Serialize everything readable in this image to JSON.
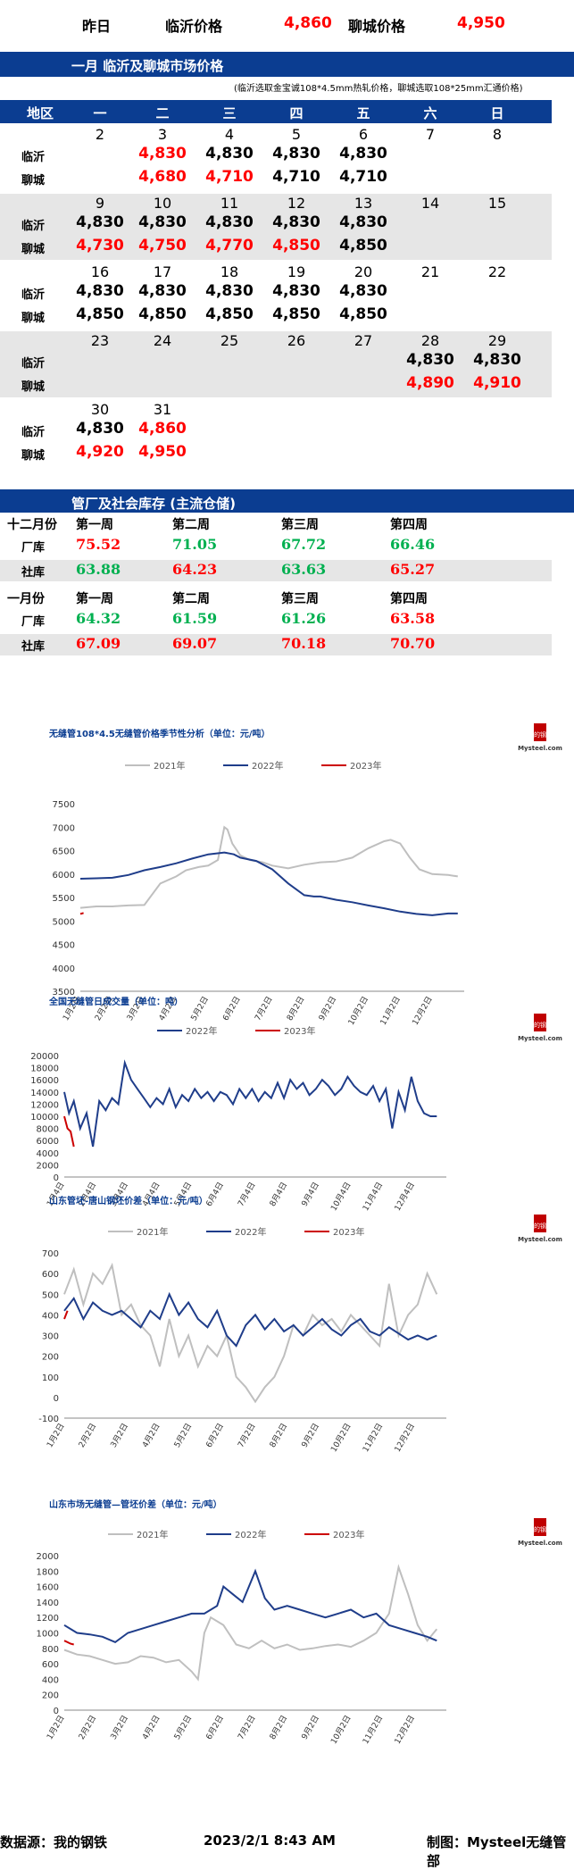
{
  "top": {
    "yesterday_label": "昨日",
    "linyi_label": "临沂价格",
    "linyi_value": "4,860",
    "liaocheng_label": "聊城价格",
    "liaocheng_value": "4,950"
  },
  "month_section": {
    "title": "一月  临沂及聊城市场价格",
    "note": "(临沂选取金宝诚108*4.5mm热轧价格，聊城选取108*25mm汇通价格)",
    "header": [
      "地区",
      "一",
      "二",
      "三",
      "四",
      "五",
      "六",
      "日"
    ],
    "row_labels": {
      "linyi": "临沂",
      "liaocheng": "聊城"
    },
    "weeks": [
      {
        "days": [
          "2",
          "3",
          "4",
          "5",
          "6",
          "7",
          "8"
        ],
        "linyi": [
          "",
          "4,830",
          "4,830",
          "4,830",
          "4,830",
          "",
          ""
        ],
        "liaocheng": [
          "",
          "4,680",
          "4,710",
          "4,710",
          "4,710",
          "",
          ""
        ],
        "linyi_red": [
          1
        ],
        "liaocheng_red": [
          1,
          2
        ]
      },
      {
        "days": [
          "9",
          "10",
          "11",
          "12",
          "13",
          "14",
          "15"
        ],
        "linyi": [
          "4,830",
          "4,830",
          "4,830",
          "4,830",
          "4,830",
          "",
          ""
        ],
        "liaocheng": [
          "4,730",
          "4,750",
          "4,770",
          "4,850",
          "4,850",
          "",
          ""
        ],
        "linyi_red": [],
        "liaocheng_red": [
          0,
          1,
          2,
          3
        ]
      },
      {
        "days": [
          "16",
          "17",
          "18",
          "19",
          "20",
          "21",
          "22"
        ],
        "linyi": [
          "4,830",
          "4,830",
          "4,830",
          "4,830",
          "4,830",
          "",
          ""
        ],
        "liaocheng": [
          "4,850",
          "4,850",
          "4,850",
          "4,850",
          "4,850",
          "",
          ""
        ],
        "linyi_red": [],
        "liaocheng_red": []
      },
      {
        "days": [
          "23",
          "24",
          "25",
          "26",
          "27",
          "28",
          "29"
        ],
        "linyi": [
          "",
          "",
          "",
          "",
          "",
          "4,830",
          "4,830"
        ],
        "liaocheng": [
          "",
          "",
          "",
          "",
          "",
          "4,890",
          "4,910"
        ],
        "linyi_red": [],
        "liaocheng_red": [
          5,
          6
        ]
      },
      {
        "days": [
          "30",
          "31",
          "",
          "",
          "",
          "",
          ""
        ],
        "linyi": [
          "4,830",
          "4,860",
          "",
          "",
          "",
          "",
          ""
        ],
        "liaocheng": [
          "4,920",
          "4,950",
          "",
          "",
          "",
          "",
          ""
        ],
        "linyi_red": [
          1
        ],
        "liaocheng_red": [
          0,
          1
        ]
      }
    ]
  },
  "inventory": {
    "title": "管厂及社会库存 (主流仓储)",
    "blocks": [
      {
        "month": "十二月份",
        "weeks": [
          "第一周",
          "第二周",
          "第三周",
          "第四周"
        ],
        "rows": [
          {
            "label": "厂库",
            "values": [
              "75.52",
              "71.05",
              "67.72",
              "66.46"
            ],
            "colors": [
              "#ff0000",
              "#00b050",
              "#00b050",
              "#00b050"
            ]
          },
          {
            "label": "社库",
            "values": [
              "63.88",
              "64.23",
              "63.63",
              "65.27"
            ],
            "colors": [
              "#00b050",
              "#ff0000",
              "#00b050",
              "#ff0000"
            ]
          }
        ]
      },
      {
        "month": "一月份",
        "weeks": [
          "第一周",
          "第二周",
          "第三周",
          "第四周"
        ],
        "rows": [
          {
            "label": "厂库",
            "values": [
              "64.32",
              "61.59",
              "61.26",
              "63.58"
            ],
            "colors": [
              "#00b050",
              "#00b050",
              "#00b050",
              "#ff0000"
            ]
          },
          {
            "label": "社库",
            "values": [
              "67.09",
              "69.07",
              "70.18",
              "70.70"
            ],
            "colors": [
              "#ff0000",
              "#ff0000",
              "#ff0000",
              "#ff0000"
            ]
          }
        ]
      }
    ]
  },
  "logo_text": {
    "cn": "我的钢铁",
    "en": "Mysteel.com"
  },
  "chart_data": [
    {
      "type": "line",
      "title": "无缝管108*4.5无缝管价格季节性分析（单位：元/吨）",
      "legend": [
        "2021年",
        "2022年",
        "2023年"
      ],
      "legend_position": "top",
      "ylim": [
        3500,
        7500
      ],
      "yticks": [
        3500,
        4000,
        4500,
        5000,
        5500,
        6000,
        6500,
        7000,
        7500
      ],
      "xticks": [
        "1月2日",
        "2月2日",
        "3月2日",
        "4月2日",
        "5月2日",
        "6月2日",
        "7月2日",
        "8月2日",
        "9月2日",
        "10月2日",
        "11月2日",
        "12月2日"
      ],
      "series": [
        {
          "name": "2021年",
          "color": "#bfbfbf",
          "x": [
            0,
            0.5,
            1,
            1.5,
            2,
            2.5,
            3,
            3.3,
            3.7,
            4,
            4.3,
            4.5,
            4.6,
            4.75,
            5,
            5.3,
            5.7,
            6,
            6.5,
            7,
            7.5,
            8,
            8.5,
            9,
            9.5,
            9.7,
            10,
            10.3,
            10.6,
            11,
            11.5,
            11.8
          ],
          "y": [
            5280,
            5310,
            5310,
            5330,
            5340,
            5800,
            5950,
            6080,
            6150,
            6180,
            6300,
            7000,
            6950,
            6650,
            6400,
            6300,
            6250,
            6180,
            6120,
            6200,
            6250,
            6270,
            6350,
            6550,
            6700,
            6730,
            6650,
            6350,
            6100,
            6000,
            5980,
            5950
          ]
        },
        {
          "name": "2022年",
          "color": "#1f3d8a",
          "x": [
            0,
            0.5,
            1,
            1.5,
            2,
            2.5,
            3,
            3.5,
            4,
            4.5,
            4.8,
            5,
            5.5,
            6,
            6.5,
            7,
            7.3,
            7.5,
            8,
            8.5,
            9,
            9.5,
            10,
            10.5,
            11,
            11.5,
            11.8
          ],
          "y": [
            5900,
            5910,
            5920,
            5980,
            6080,
            6150,
            6230,
            6330,
            6420,
            6460,
            6420,
            6350,
            6280,
            6100,
            5800,
            5550,
            5520,
            5520,
            5450,
            5400,
            5330,
            5270,
            5200,
            5150,
            5120,
            5160,
            5160
          ]
        },
        {
          "name": "2023年",
          "color": "#cc0000",
          "x": [
            0,
            0.05,
            0.1
          ],
          "y": [
            5150,
            5160,
            5170
          ]
        }
      ]
    },
    {
      "type": "line",
      "title": "全国无缝管日成交量（单位：吨）",
      "legend": [
        "2022年",
        "2023年"
      ],
      "legend_position": "top",
      "ylim": [
        0,
        20000
      ],
      "yticks": [
        0,
        2000,
        4000,
        6000,
        8000,
        10000,
        12000,
        14000,
        16000,
        18000,
        20000
      ],
      "xticks": [
        "1月4日",
        "2月4日",
        "3月4日",
        "4月4日",
        "5月4日",
        "6月4日",
        "7月4日",
        "8月4日",
        "9月4日",
        "10月4日",
        "11月4日",
        "12月4日"
      ],
      "series": [
        {
          "name": "2022年",
          "color": "#1f3d8a",
          "x": [
            0,
            0.15,
            0.3,
            0.5,
            0.7,
            0.9,
            1.1,
            1.3,
            1.5,
            1.7,
            1.9,
            2.1,
            2.3,
            2.5,
            2.7,
            2.9,
            3.1,
            3.3,
            3.5,
            3.7,
            3.9,
            4.1,
            4.3,
            4.5,
            4.7,
            4.9,
            5.1,
            5.3,
            5.5,
            5.7,
            5.9,
            6.1,
            6.3,
            6.5,
            6.7,
            6.9,
            7.1,
            7.3,
            7.5,
            7.7,
            7.9,
            8.1,
            8.3,
            8.5,
            8.7,
            8.9,
            9.1,
            9.3,
            9.5,
            9.7,
            9.9,
            10.1,
            10.3,
            10.5,
            10.7,
            10.9,
            11.1,
            11.3,
            11.5,
            11.7
          ],
          "y": [
            14000,
            10500,
            12500,
            8000,
            10500,
            5000,
            12500,
            11000,
            13000,
            12000,
            18800,
            16000,
            14500,
            13000,
            11500,
            13000,
            12000,
            14500,
            11500,
            13500,
            12500,
            14500,
            13000,
            14000,
            12500,
            14000,
            13500,
            12000,
            14500,
            13000,
            14500,
            12500,
            14000,
            13000,
            15500,
            13000,
            16000,
            14500,
            15500,
            13500,
            14500,
            16000,
            15000,
            13500,
            14500,
            16500,
            15000,
            14000,
            13500,
            15000,
            12500,
            14500,
            8000,
            14000,
            11000,
            16500,
            12500,
            10500,
            10000,
            10000
          ]
        },
        {
          "name": "2023年",
          "color": "#cc0000",
          "x": [
            0,
            0.1,
            0.2,
            0.3
          ],
          "y": [
            10000,
            8000,
            7500,
            5000
          ]
        }
      ]
    },
    {
      "type": "line",
      "title": "山东管坯-唐山钢坯价差（单位：元/吨）",
      "legend": [
        "2021年",
        "2022年",
        "2023年"
      ],
      "legend_position": "top",
      "ylim": [
        -100,
        700
      ],
      "yticks": [
        -100,
        0,
        100,
        200,
        300,
        400,
        500,
        600,
        700
      ],
      "xticks": [
        "1月2日",
        "2月2日",
        "3月2日",
        "4月2日",
        "5月2日",
        "6月2日",
        "7月2日",
        "8月2日",
        "9月2日",
        "10月2日",
        "11月2日",
        "12月2日"
      ],
      "series": [
        {
          "name": "2021年",
          "color": "#bfbfbf",
          "x": [
            0,
            0.3,
            0.6,
            0.9,
            1.2,
            1.5,
            1.8,
            2.1,
            2.4,
            2.7,
            3,
            3.3,
            3.6,
            3.9,
            4.2,
            4.5,
            4.8,
            5.1,
            5.4,
            5.7,
            6,
            6.3,
            6.6,
            6.9,
            7.2,
            7.5,
            7.8,
            8.1,
            8.4,
            8.7,
            9,
            9.3,
            9.6,
            9.9,
            10.2,
            10.5,
            10.8,
            11.1,
            11.4,
            11.7
          ],
          "y": [
            500,
            620,
            450,
            600,
            550,
            640,
            400,
            450,
            350,
            300,
            150,
            380,
            200,
            300,
            150,
            250,
            200,
            300,
            100,
            50,
            -20,
            50,
            100,
            200,
            350,
            300,
            400,
            350,
            380,
            320,
            400,
            350,
            300,
            250,
            550,
            300,
            400,
            450,
            600,
            500
          ]
        },
        {
          "name": "2022年",
          "color": "#1f3d8a",
          "x": [
            0,
            0.3,
            0.6,
            0.9,
            1.2,
            1.5,
            1.8,
            2.1,
            2.4,
            2.7,
            3,
            3.3,
            3.6,
            3.9,
            4.2,
            4.5,
            4.8,
            5.1,
            5.4,
            5.7,
            6,
            6.3,
            6.6,
            6.9,
            7.2,
            7.5,
            7.8,
            8.1,
            8.4,
            8.7,
            9,
            9.3,
            9.6,
            9.9,
            10.2,
            10.5,
            10.8,
            11.1,
            11.4,
            11.7
          ],
          "y": [
            420,
            480,
            380,
            460,
            420,
            400,
            420,
            380,
            340,
            420,
            380,
            500,
            400,
            460,
            380,
            340,
            420,
            300,
            250,
            350,
            400,
            330,
            380,
            320,
            350,
            300,
            340,
            380,
            330,
            300,
            350,
            380,
            320,
            300,
            340,
            310,
            280,
            300,
            280,
            300
          ]
        },
        {
          "name": "2023年",
          "color": "#cc0000",
          "x": [
            0,
            0.05,
            0.1
          ],
          "y": [
            380,
            400,
            420
          ]
        }
      ]
    },
    {
      "type": "line",
      "title": "山东市场无缝管—管坯价差（单位：元/吨）",
      "legend": [
        "2021年",
        "2022年",
        "2023年"
      ],
      "legend_position": "top",
      "ylim": [
        0,
        2000
      ],
      "yticks": [
        0,
        200,
        400,
        600,
        800,
        1000,
        1200,
        1400,
        1600,
        1800,
        2000
      ],
      "xticks": [
        "1月2日",
        "2月2日",
        "3月2日",
        "4月2日",
        "5月2日",
        "6月2日",
        "7月2日",
        "8月2日",
        "9月2日",
        "10月2日",
        "11月2日",
        "12月2日"
      ],
      "series": [
        {
          "name": "2021年",
          "color": "#bfbfbf",
          "x": [
            0,
            0.4,
            0.8,
            1.2,
            1.6,
            2,
            2.4,
            2.8,
            3.2,
            3.6,
            4,
            4.2,
            4.4,
            4.6,
            5,
            5.4,
            5.8,
            6.2,
            6.6,
            7,
            7.4,
            7.8,
            8.2,
            8.6,
            9,
            9.4,
            9.8,
            10.2,
            10.5,
            10.8,
            11.1,
            11.4,
            11.7
          ],
          "y": [
            780,
            720,
            700,
            650,
            600,
            620,
            700,
            680,
            620,
            650,
            500,
            400,
            1000,
            1200,
            1100,
            850,
            800,
            900,
            800,
            850,
            780,
            800,
            830,
            850,
            820,
            900,
            1000,
            1250,
            1850,
            1500,
            1100,
            900,
            1050
          ]
        },
        {
          "name": "2022年",
          "color": "#1f3d8a",
          "x": [
            0,
            0.4,
            0.8,
            1.2,
            1.6,
            2,
            2.4,
            2.8,
            3.2,
            3.6,
            4,
            4.4,
            4.8,
            5,
            5.3,
            5.6,
            6,
            6.3,
            6.6,
            7,
            7.4,
            7.8,
            8.2,
            8.6,
            9,
            9.4,
            9.8,
            10.2,
            10.6,
            11,
            11.4,
            11.7
          ],
          "y": [
            1100,
            1000,
            980,
            950,
            880,
            1000,
            1050,
            1100,
            1150,
            1200,
            1250,
            1250,
            1350,
            1600,
            1500,
            1400,
            1800,
            1450,
            1300,
            1350,
            1300,
            1250,
            1200,
            1250,
            1300,
            1200,
            1250,
            1100,
            1050,
            1000,
            950,
            900
          ]
        },
        {
          "name": "2023年",
          "color": "#cc0000",
          "x": [
            0,
            0.1,
            0.2,
            0.3
          ],
          "y": [
            900,
            880,
            860,
            850
          ]
        }
      ]
    }
  ],
  "footer": {
    "source": "数据源：我的钢铁",
    "timestamp": "2023/2/1 8:43 AM",
    "producer": "制图：Mysteel无缝管部"
  }
}
